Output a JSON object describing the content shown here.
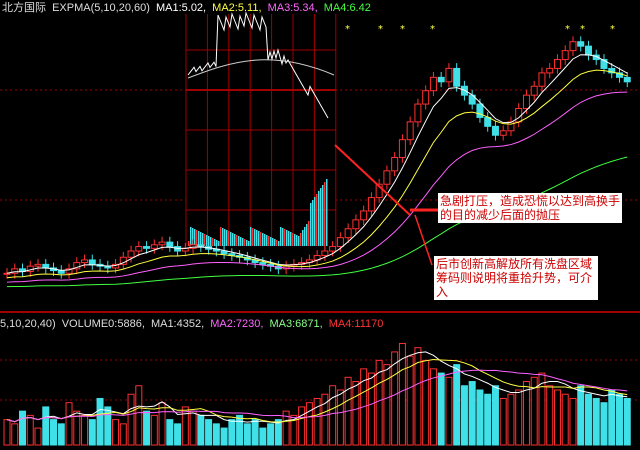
{
  "header": {
    "stock": "北方国际",
    "indicator": "EXPMA(5,10,20,60)",
    "ma1": "MA1:5.02,",
    "ma2": "MA2:5.11,",
    "ma3": "MA3:5.34,",
    "ma4": "MA4:6.42"
  },
  "volume_header": {
    "params": "5,10,20,40)",
    "volume": "VOLUME0:5886,",
    "ma1": "MA1:4352,",
    "ma2": "MA2:7230,",
    "ma3": "MA3:6871,",
    "ma4": "MA4:11170"
  },
  "annotations": {
    "note1": "急剧打压，造成恐慌以达到高换手的目的减少后面的抛压",
    "note2": "后市创新高解放所有洗盘区域筹码则说明将重拾升势，可介入"
  },
  "colors": {
    "up": "#ff3030",
    "down": "#40e0e8",
    "ma1": "#ffffff",
    "ma2": "#ffff40",
    "ma3": "#ff60ff",
    "ma4": "#40ff40",
    "grid": "#a00000"
  },
  "chart_data": {
    "type": "candlestick",
    "closes": [
      4.3,
      4.35,
      4.32,
      4.38,
      4.4,
      4.36,
      4.33,
      4.3,
      4.35,
      4.42,
      4.45,
      4.4,
      4.38,
      4.36,
      4.4,
      4.48,
      4.55,
      4.6,
      4.58,
      4.62,
      4.65,
      4.6,
      4.55,
      4.58,
      4.62,
      4.6,
      4.57,
      4.55,
      4.52,
      4.5,
      4.48,
      4.45,
      4.42,
      4.4,
      4.38,
      4.35,
      4.38,
      4.4,
      4.42,
      4.45,
      4.5,
      4.55,
      4.6,
      4.7,
      4.8,
      4.9,
      5.0,
      5.15,
      5.3,
      5.45,
      5.6,
      5.8,
      6.0,
      6.2,
      6.35,
      6.5,
      6.45,
      6.6,
      6.4,
      6.3,
      6.2,
      6.05,
      5.95,
      5.85,
      5.9,
      6.0,
      6.15,
      6.3,
      6.4,
      6.55,
      6.6,
      6.7,
      6.8,
      6.9,
      6.85,
      6.75,
      6.7,
      6.6,
      6.55,
      6.5,
      6.45
    ],
    "volume": [
      30,
      25,
      40,
      35,
      20,
      45,
      30,
      25,
      50,
      40,
      35,
      30,
      55,
      45,
      30,
      25,
      60,
      70,
      40,
      35,
      50,
      30,
      25,
      45,
      40,
      35,
      30,
      25,
      20,
      30,
      35,
      25,
      30,
      20,
      25,
      30,
      40,
      35,
      45,
      50,
      55,
      60,
      70,
      65,
      80,
      75,
      90,
      85,
      100,
      95,
      110,
      120,
      105,
      115,
      100,
      90,
      85,
      80,
      95,
      70,
      75,
      65,
      60,
      70,
      55,
      60,
      65,
      75,
      80,
      85,
      70,
      65,
      60,
      55,
      70,
      60,
      55,
      50,
      65,
      60,
      55
    ],
    "ma_periods": [
      5,
      10,
      20,
      60
    ]
  }
}
